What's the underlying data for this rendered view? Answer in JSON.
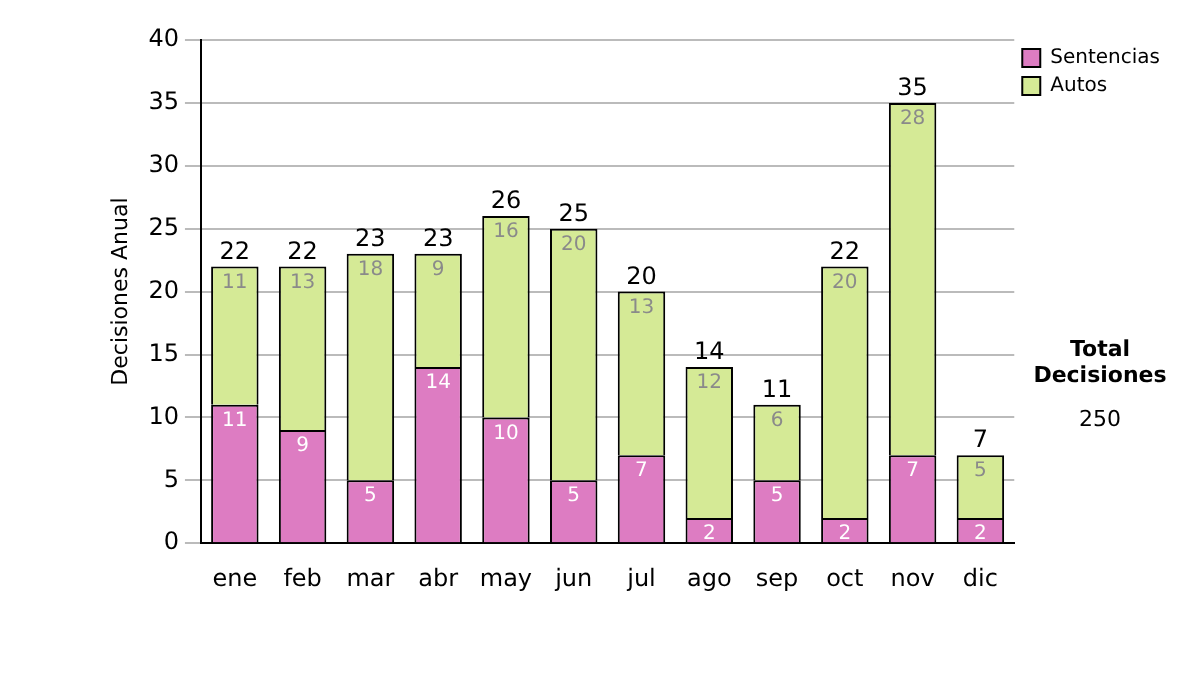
{
  "chart_data": {
    "type": "bar",
    "stacked": true,
    "ylabel": "Decisiones Anual",
    "categories": [
      "ene",
      "feb",
      "mar",
      "abr",
      "may",
      "jun",
      "jul",
      "ago",
      "sep",
      "oct",
      "nov",
      "dic"
    ],
    "series": [
      {
        "name": "Sentencias",
        "color": "#dd7cc2",
        "values": [
          11,
          9,
          5,
          14,
          10,
          5,
          7,
          2,
          5,
          2,
          7,
          2
        ]
      },
      {
        "name": "Autos",
        "color": "#d5ea96",
        "values": [
          11,
          13,
          18,
          9,
          16,
          20,
          13,
          12,
          6,
          20,
          28,
          5
        ]
      }
    ],
    "data_labels": true,
    "totals": [
      "22",
      "22",
      "23",
      "23",
      "26",
      "25",
      "20",
      "14",
      "11",
      "22",
      "35",
      "7"
    ],
    "ylim": [
      0,
      40
    ],
    "yticks": [
      0,
      5,
      10,
      15,
      20,
      25,
      30,
      35,
      40
    ],
    "grid": "y",
    "legend": "right",
    "annotations": [
      "Total Decisiones",
      "250"
    ]
  }
}
